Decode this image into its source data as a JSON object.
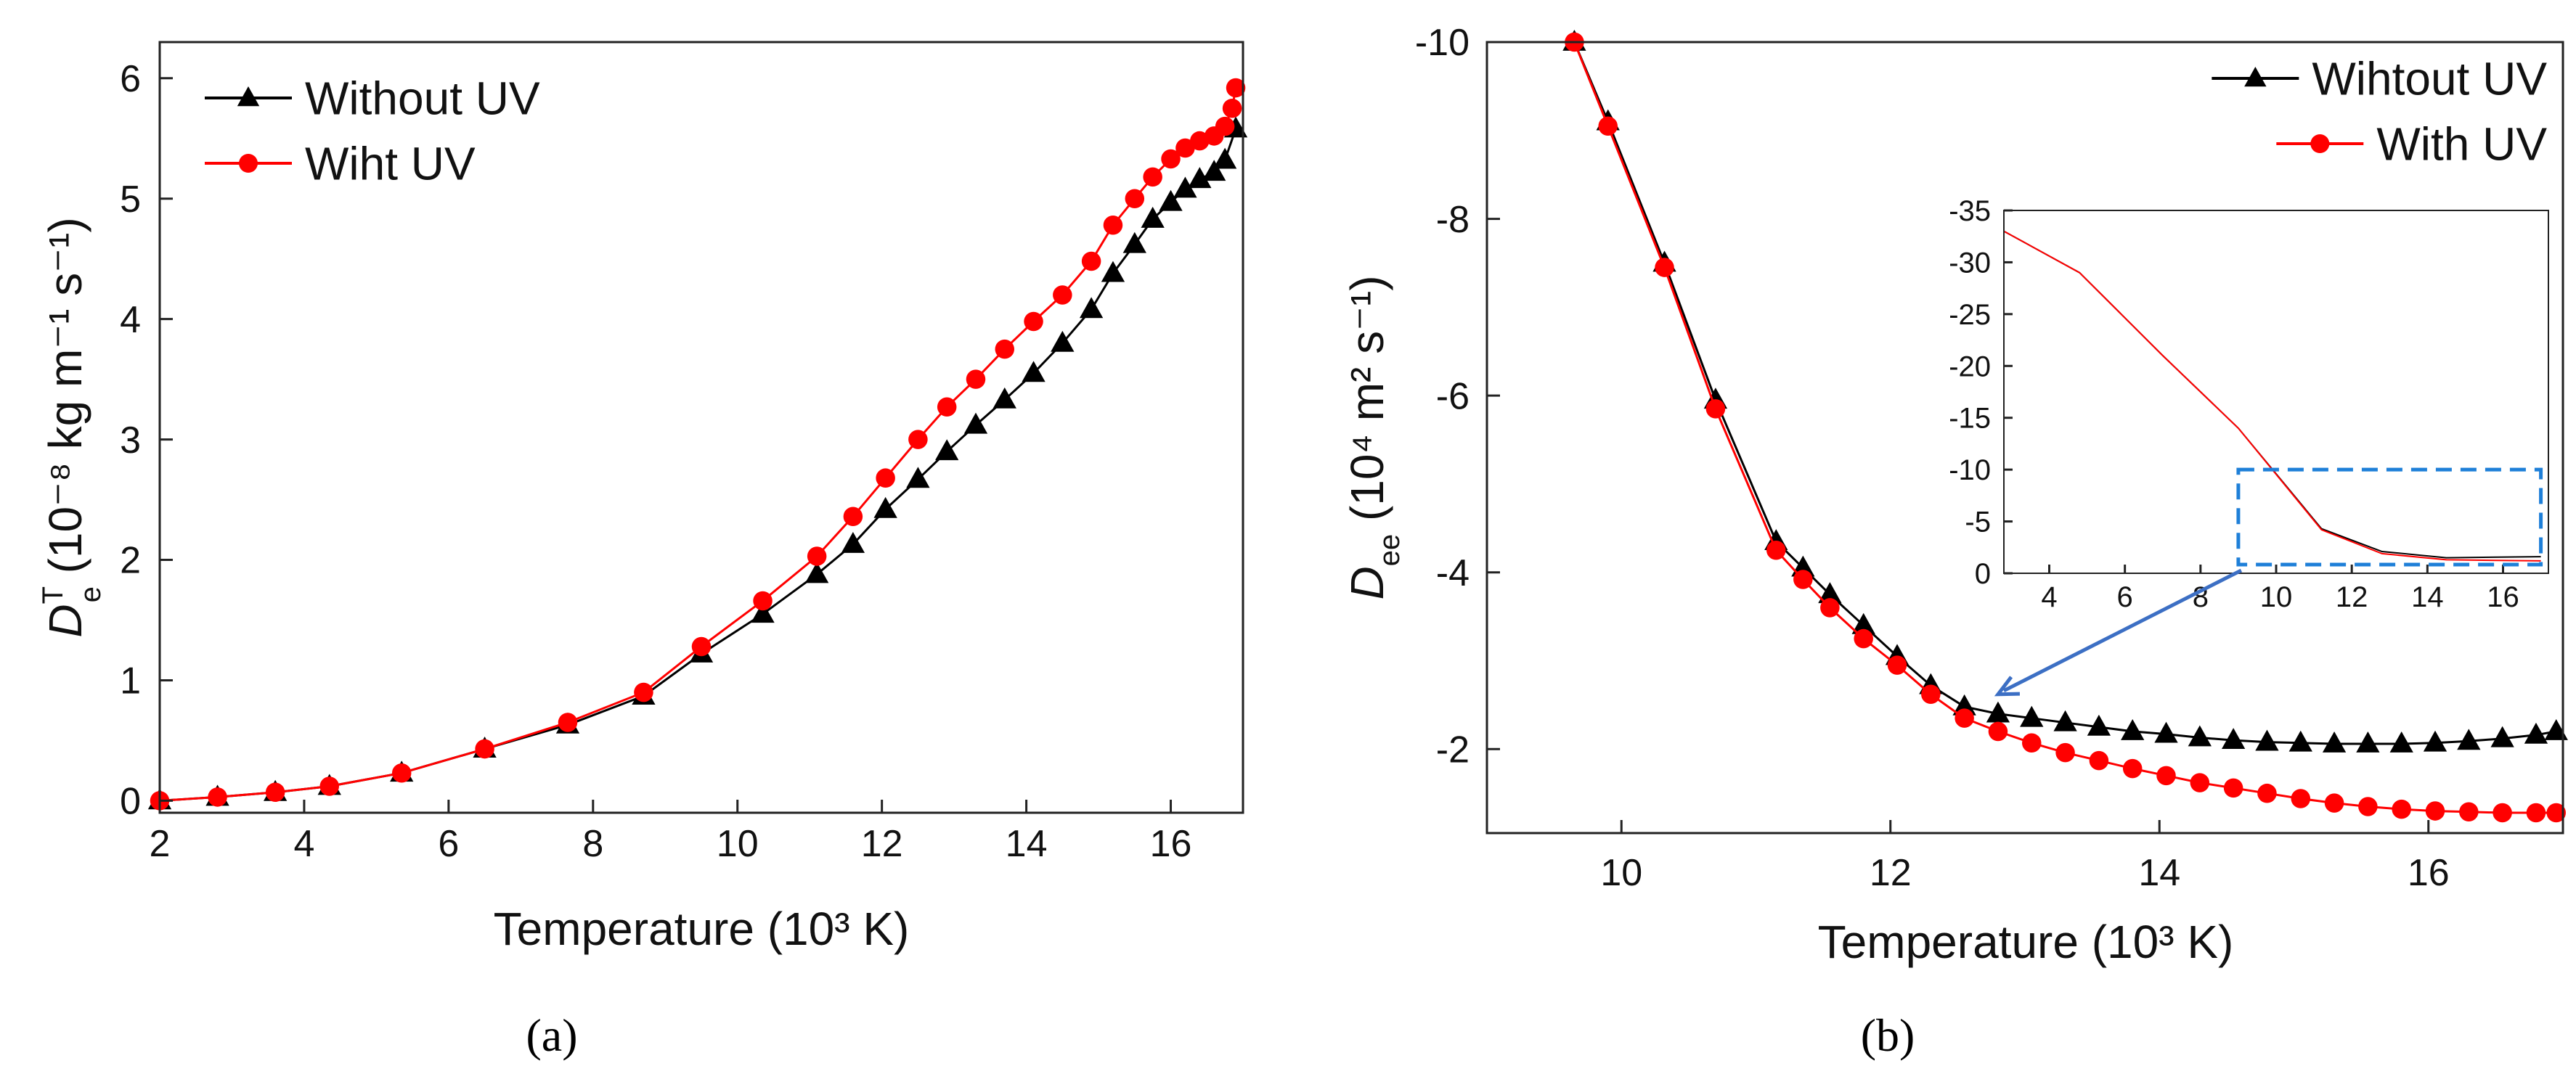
{
  "chart_data": [
    {
      "panel": "a",
      "type": "line",
      "panel_label": "(a)",
      "xlabel": "Temperature (10³ K)",
      "ylabel_parts": {
        "base": "D",
        "sup": "T",
        "sub": "e",
        "rest": " (10⁻⁸ kg m⁻¹ s⁻¹)"
      },
      "xlim": [
        2,
        17
      ],
      "ylim": [
        -0.1,
        6.3
      ],
      "xticks": [
        2,
        4,
        6,
        8,
        10,
        12,
        14,
        16
      ],
      "yticks": [
        0,
        1,
        2,
        3,
        4,
        5,
        6
      ],
      "legend_position": "top-left",
      "series": [
        {
          "name": "Without UV",
          "color": "#000000",
          "marker": "triangle",
          "x": [
            2.0,
            2.8,
            3.6,
            4.35,
            5.35,
            6.5,
            7.65,
            8.7,
            9.5,
            10.35,
            11.1,
            11.6,
            12.05,
            12.5,
            12.9,
            13.3,
            13.7,
            14.1,
            14.5,
            14.9,
            15.2,
            15.5,
            15.75,
            16.0,
            16.2,
            16.4,
            16.6,
            16.75,
            16.9
          ],
          "values": [
            0.0,
            0.03,
            0.07,
            0.12,
            0.23,
            0.43,
            0.63,
            0.87,
            1.22,
            1.55,
            1.88,
            2.13,
            2.42,
            2.67,
            2.9,
            3.12,
            3.33,
            3.55,
            3.8,
            4.08,
            4.38,
            4.62,
            4.83,
            4.97,
            5.08,
            5.16,
            5.22,
            5.32,
            5.58
          ]
        },
        {
          "name": "Wiht UV",
          "color": "#ff0000",
          "marker": "circle",
          "x": [
            2.0,
            2.8,
            3.6,
            4.35,
            5.35,
            6.5,
            7.65,
            8.7,
            9.5,
            10.35,
            11.1,
            11.6,
            12.05,
            12.5,
            12.9,
            13.3,
            13.7,
            14.1,
            14.5,
            14.9,
            15.2,
            15.5,
            15.75,
            16.0,
            16.2,
            16.4,
            16.6,
            16.75,
            16.85,
            16.9
          ],
          "values": [
            0.0,
            0.03,
            0.07,
            0.12,
            0.23,
            0.43,
            0.65,
            0.9,
            1.28,
            1.66,
            2.03,
            2.36,
            2.68,
            3.0,
            3.27,
            3.5,
            3.75,
            3.98,
            4.2,
            4.48,
            4.78,
            5.0,
            5.18,
            5.33,
            5.42,
            5.48,
            5.52,
            5.6,
            5.75,
            5.92
          ]
        }
      ]
    },
    {
      "panel": "b",
      "type": "line",
      "panel_label": "(b)",
      "xlabel": "Temperature (10³ K)",
      "ylabel_parts": {
        "base": "D",
        "sub": "ee",
        "rest": " (10⁴ m² s⁻¹)"
      },
      "xlim": [
        9.0,
        17.0
      ],
      "ylim": [
        -10,
        -1.05
      ],
      "y_inverted": true,
      "xticks": [
        10,
        12,
        14,
        16
      ],
      "yticks": [
        -10,
        -8,
        -6,
        -4,
        -2
      ],
      "legend_position": "top-right",
      "series": [
        {
          "name": "Wihtout UV",
          "color": "#000000",
          "marker": "triangle",
          "x": [
            9.65,
            9.9,
            10.32,
            10.7,
            11.15,
            11.35,
            11.55,
            11.8,
            12.05,
            12.3,
            12.55,
            12.8,
            13.05,
            13.3,
            13.55,
            13.8,
            14.05,
            14.3,
            14.55,
            14.8,
            15.05,
            15.3,
            15.55,
            15.8,
            16.05,
            16.3,
            16.55,
            16.8,
            16.95
          ],
          "values": [
            -10.0,
            -9.1,
            -7.5,
            -5.95,
            -4.35,
            -4.05,
            -3.75,
            -3.4,
            -3.05,
            -2.72,
            -2.48,
            -2.4,
            -2.35,
            -2.3,
            -2.25,
            -2.2,
            -2.17,
            -2.13,
            -2.1,
            -2.08,
            -2.07,
            -2.06,
            -2.06,
            -2.06,
            -2.07,
            -2.09,
            -2.12,
            -2.16,
            -2.2
          ]
        },
        {
          "name": "With UV",
          "color": "#ff0000",
          "marker": "circle",
          "x": [
            9.65,
            9.9,
            10.32,
            10.7,
            11.15,
            11.35,
            11.55,
            11.8,
            12.05,
            12.3,
            12.55,
            12.8,
            13.05,
            13.3,
            13.55,
            13.8,
            14.05,
            14.3,
            14.55,
            14.8,
            15.05,
            15.3,
            15.55,
            15.8,
            16.05,
            16.3,
            16.55,
            16.8,
            16.95
          ],
          "values": [
            -10.0,
            -9.05,
            -7.45,
            -5.85,
            -4.25,
            -3.92,
            -3.6,
            -3.25,
            -2.95,
            -2.62,
            -2.35,
            -2.2,
            -2.07,
            -1.96,
            -1.87,
            -1.78,
            -1.7,
            -1.62,
            -1.56,
            -1.5,
            -1.44,
            -1.39,
            -1.35,
            -1.32,
            -1.3,
            -1.29,
            -1.28,
            -1.28,
            -1.28
          ]
        }
      ],
      "inset": {
        "xlim": [
          2.8,
          17.2
        ],
        "ylim": [
          0,
          -35
        ],
        "xticks": [
          4,
          6,
          8,
          10,
          12,
          14,
          16
        ],
        "yticks": [
          0,
          -5,
          -10,
          -15,
          -20,
          -25,
          -30,
          -35
        ],
        "series": [
          {
            "name": "Wihtout UV",
            "color": "#000000",
            "x": [
              2.8,
              4.8,
              7.0,
              9.0,
              11.2,
              12.8,
              14.5,
              17.0
            ],
            "values": [
              -33,
              -29,
              -21,
              -14,
              -4.3,
              -2.1,
              -1.5,
              -1.6
            ]
          },
          {
            "name": "With UV",
            "color": "#ff0000",
            "x": [
              2.8,
              4.8,
              7.0,
              9.0,
              11.2,
              12.8,
              14.5,
              17.0
            ],
            "values": [
              -33,
              -29,
              -21,
              -14,
              -4.2,
              -1.9,
              -1.3,
              -1.2
            ]
          }
        ],
        "zoom_box": {
          "x": [
            9.0,
            17.0
          ],
          "y": [
            0,
            -10
          ],
          "color": "#1e7fd8"
        },
        "arrow_color": "#3c6fc4"
      }
    }
  ]
}
